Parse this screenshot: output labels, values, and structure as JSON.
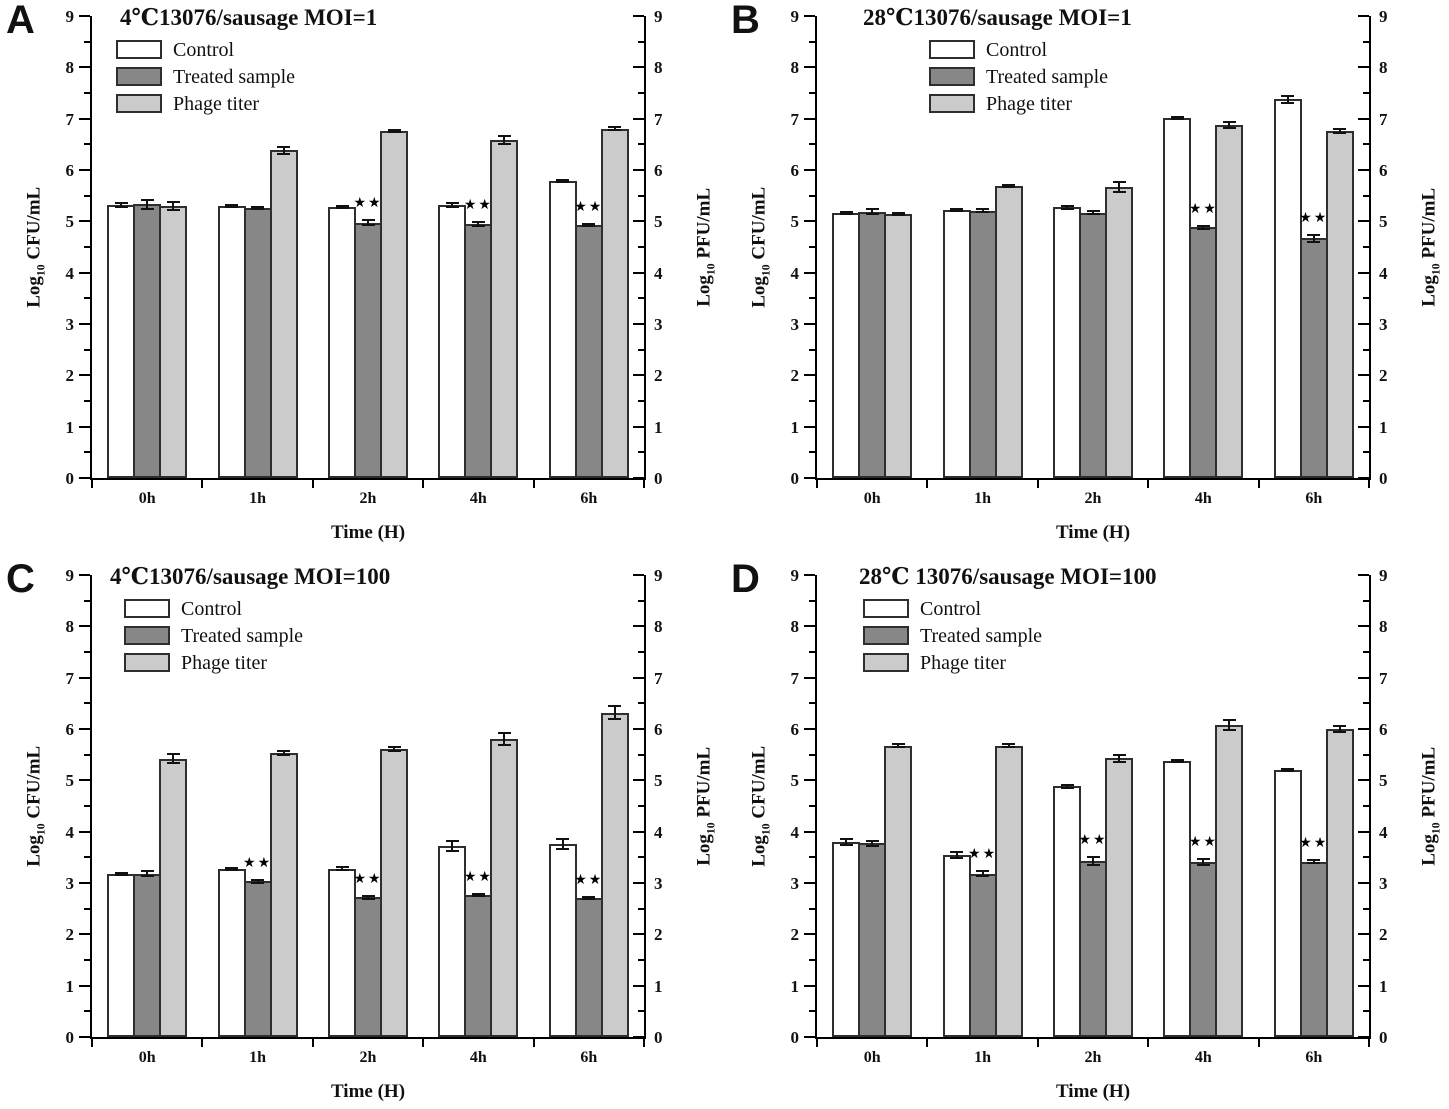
{
  "figure": {
    "sig_symbol": "★★",
    "y_ticks": [
      "0",
      "1",
      "2",
      "3",
      "4",
      "5",
      "6",
      "7",
      "8",
      "9"
    ],
    "ylabel_left_parts": {
      "pre": "Log",
      "sub": "10",
      "post": " CFU/mL"
    },
    "ylabel_right_parts": {
      "pre": "Log",
      "sub": "10",
      "post": " PFU/mL"
    },
    "colors": {
      "control": "#ffffff",
      "treated": "#878787",
      "phage": "#cbcbcb",
      "bar_border": "#2e2e2e",
      "axis": "#000000",
      "text": "#111111"
    }
  },
  "chart_data": [
    {
      "panel": "A",
      "type": "bar",
      "title": "4℃13076/sausage MOI=1",
      "xlabel": "Time (H)",
      "ylabel_left": "Log10 CFU/mL",
      "ylabel_right": "Log10 PFU/mL",
      "ylim": [
        0,
        9
      ],
      "grid": false,
      "legend_position": "top-left",
      "categories": [
        "0h",
        "1h",
        "2h",
        "4h",
        "6h"
      ],
      "series": [
        {
          "name": "Control",
          "values": [
            5.32,
            5.3,
            5.28,
            5.32,
            5.79
          ],
          "errors": [
            0.04,
            0.02,
            0.02,
            0.04,
            0.02
          ]
        },
        {
          "name": "Treated sample",
          "values": [
            5.33,
            5.26,
            4.97,
            4.95,
            4.93
          ],
          "errors": [
            0.08,
            0.02,
            0.05,
            0.04,
            0.02
          ]
        },
        {
          "name": "Phage titer",
          "values": [
            5.3,
            6.38,
            6.76,
            6.58,
            6.8
          ],
          "errors": [
            0.07,
            0.06,
            0.02,
            0.08,
            0.03
          ]
        }
      ],
      "significance_on_treated": [
        false,
        false,
        true,
        true,
        true
      ]
    },
    {
      "panel": "B",
      "type": "bar",
      "title": "28℃13076/sausage MOI=1",
      "xlabel": "Time (H)",
      "ylabel_left": "Log10 CFU/mL",
      "ylabel_right": "Log PFU/mL",
      "ylim": [
        0,
        9
      ],
      "grid": false,
      "legend_position": "top-left",
      "categories": [
        "0h",
        "1h",
        "2h",
        "4h",
        "6h"
      ],
      "series": [
        {
          "name": "Control",
          "values": [
            5.17,
            5.22,
            5.27,
            7.01,
            7.38
          ],
          "errors": [
            0.02,
            0.02,
            0.02,
            0.02,
            0.07
          ]
        },
        {
          "name": "Treated sample",
          "values": [
            5.19,
            5.21,
            5.17,
            4.88,
            4.67
          ],
          "errors": [
            0.05,
            0.03,
            0.03,
            0.02,
            0.07
          ]
        },
        {
          "name": "Phage titer",
          "values": [
            5.15,
            5.68,
            5.67,
            6.88,
            6.76
          ],
          "errors": [
            0.02,
            0.02,
            0.1,
            0.06,
            0.04
          ]
        }
      ],
      "significance_on_treated": [
        false,
        false,
        false,
        true,
        true
      ]
    },
    {
      "panel": "C",
      "type": "bar",
      "title": "4℃13076/sausage MOI=100",
      "xlabel": "Time (H)",
      "ylabel_left": "Log10 CFU/mL",
      "ylabel_right": "Log10 PFU/mL",
      "ylim": [
        0,
        9
      ],
      "grid": false,
      "legend_position": "top-left",
      "categories": [
        "0h",
        "1h",
        "2h",
        "4h",
        "6h"
      ],
      "series": [
        {
          "name": "Control",
          "values": [
            3.18,
            3.28,
            3.28,
            3.72,
            3.76
          ],
          "errors": [
            0.02,
            0.02,
            0.03,
            0.1,
            0.09
          ]
        },
        {
          "name": "Treated sample",
          "values": [
            3.18,
            3.03,
            2.72,
            2.76,
            2.7
          ],
          "errors": [
            0.05,
            0.03,
            0.03,
            0.02,
            0.02
          ]
        },
        {
          "name": "Phage titer",
          "values": [
            5.42,
            5.53,
            5.61,
            5.8,
            6.32
          ],
          "errors": [
            0.09,
            0.04,
            0.03,
            0.12,
            0.12
          ]
        }
      ],
      "significance_on_treated": [
        false,
        true,
        true,
        true,
        true
      ]
    },
    {
      "panel": "D",
      "type": "bar",
      "title": "28℃ 13076/sausage MOI=100",
      "xlabel": "Time (H)",
      "ylabel_left": "Log10 CFU/mL",
      "ylabel_right": "Log10 PFU/mL",
      "ylim": [
        0,
        9
      ],
      "grid": false,
      "legend_position": "top-left",
      "categories": [
        "0h",
        "1h",
        "2h",
        "4h",
        "6h"
      ],
      "series": [
        {
          "name": "Control",
          "values": [
            3.8,
            3.55,
            4.88,
            5.38,
            5.21
          ],
          "errors": [
            0.05,
            0.06,
            0.02,
            0.02,
            0.02
          ]
        },
        {
          "name": "Treated sample",
          "values": [
            3.77,
            3.18,
            3.43,
            3.41,
            3.41
          ],
          "errors": [
            0.05,
            0.05,
            0.07,
            0.05,
            0.03
          ]
        },
        {
          "name": "Phage titer",
          "values": [
            5.67,
            5.67,
            5.43,
            6.08,
            6.0
          ],
          "errors": [
            0.03,
            0.03,
            0.07,
            0.1,
            0.05
          ]
        }
      ],
      "significance_on_treated": [
        false,
        true,
        true,
        true,
        true
      ]
    }
  ]
}
